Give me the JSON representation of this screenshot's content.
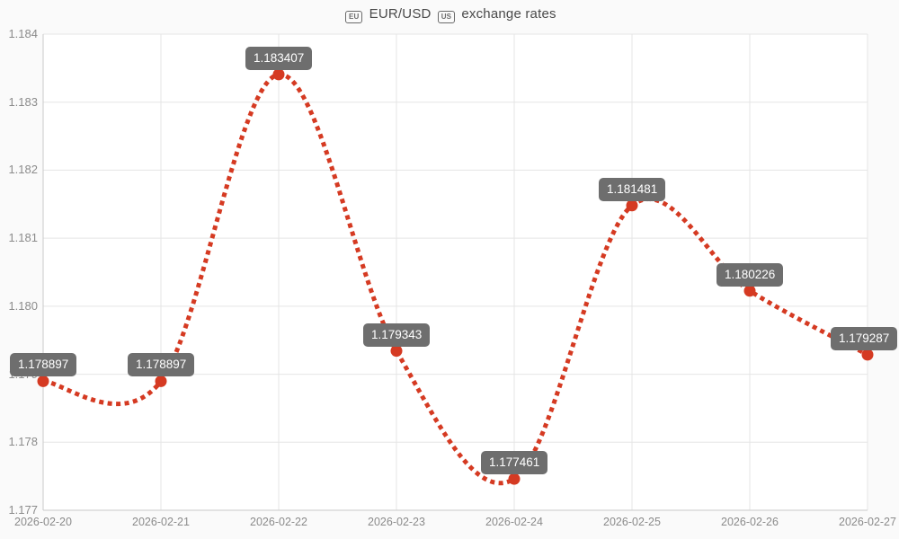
{
  "title": {
    "eu_badge": "EU",
    "pair": "EUR/USD",
    "us_badge": "US",
    "suffix": "exchange rates",
    "full": "🇪🇺 EUR/USD 🇺🇸 exchange rates"
  },
  "chart_data": {
    "type": "line",
    "title": "🇪🇺 EUR/USD 🇺🇸 exchange rates",
    "xlabel": "",
    "ylabel": "",
    "x": [
      "2026-02-20",
      "2026-02-21",
      "2026-02-22",
      "2026-02-23",
      "2026-02-24",
      "2026-02-25",
      "2026-02-26",
      "2026-02-27"
    ],
    "series": [
      {
        "name": "EUR/USD",
        "values": [
          1.178897,
          1.178897,
          1.183407,
          1.179343,
          1.177461,
          1.181481,
          1.180226,
          1.179287
        ]
      }
    ],
    "point_labels": [
      "1.178897",
      "1.178897",
      "1.183407",
      "1.179343",
      "1.177461",
      "1.181481",
      "1.180226",
      "1.179287"
    ],
    "ylim": [
      1.177,
      1.184
    ],
    "yticks": [
      1.177,
      1.178,
      1.179,
      1.18,
      1.181,
      1.182,
      1.183,
      1.184
    ],
    "ytick_labels": [
      "1.177",
      "1.178",
      "1.179",
      "1.180",
      "1.181",
      "1.182",
      "1.183",
      "1.184"
    ],
    "grid": true,
    "legend_position": "none",
    "line_style": "dotted",
    "curve": "smooth",
    "colors": {
      "line": "#d53a22",
      "point": "#d53a22",
      "tooltip_bg": "#6e6e6e",
      "tooltip_text": "#ffffff",
      "gridline": "#e5e5e5",
      "axis_line": "#cacaca",
      "tick_text": "#8b8b8b",
      "plot_bg": "#ffffff",
      "page_bg": "#fafafa"
    }
  }
}
